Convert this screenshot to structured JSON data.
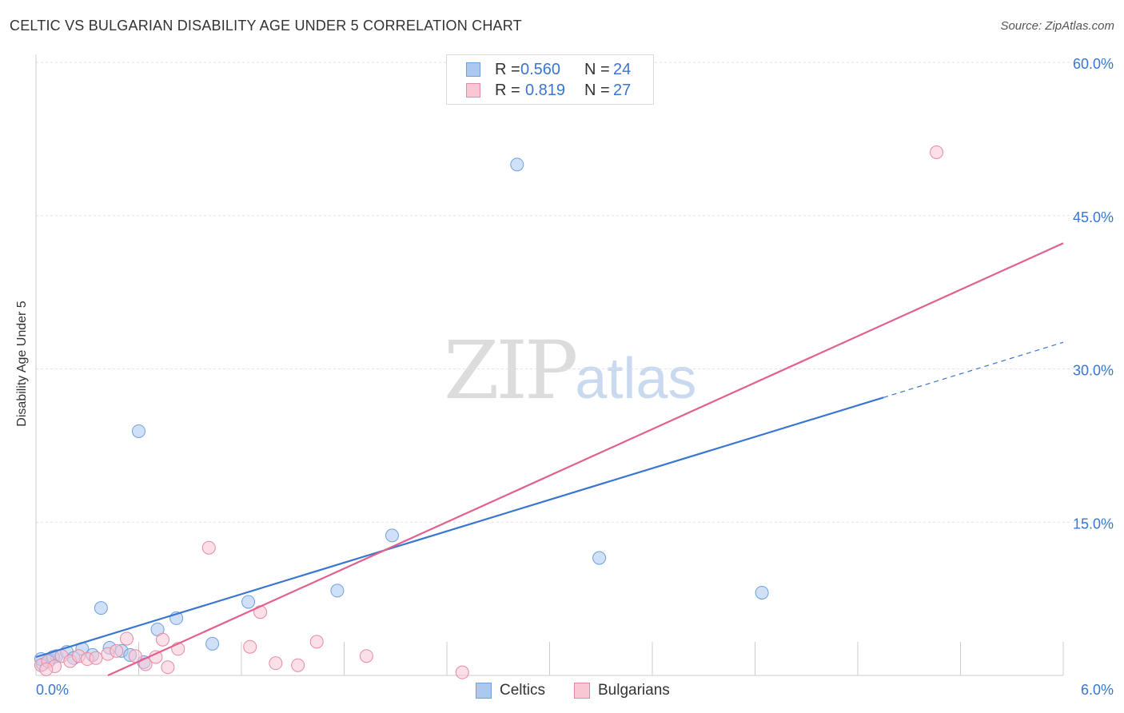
{
  "header": {
    "title": "CELTIC VS BULGARIAN DISABILITY AGE UNDER 5 CORRELATION CHART",
    "source": "Source: ZipAtlas.com"
  },
  "watermark": {
    "zip": "ZIP",
    "atlas": "atlas"
  },
  "legend": {
    "rows": [
      {
        "r_label": "R =",
        "r_value": "0.560",
        "n_label": "N =",
        "n_value": "24",
        "color": "#aac8f0",
        "border": "#6f9fdc"
      },
      {
        "r_label": "R =",
        "r_value": "0.819",
        "n_label": "N =",
        "n_value": "27",
        "color": "#f9c6d4",
        "border": "#e58aa6"
      }
    ],
    "bottom": [
      {
        "label": "Celtics",
        "color": "#aac8f0",
        "border": "#6f9fdc"
      },
      {
        "label": "Bulgarians",
        "color": "#f9c6d4",
        "border": "#e58aa6"
      }
    ]
  },
  "chart_data": {
    "type": "scatter",
    "title": "CELTIC VS BULGARIAN DISABILITY AGE UNDER 5 CORRELATION CHART",
    "xlabel": "",
    "ylabel": "Disability Age Under 5",
    "xlim": [
      0,
      6
    ],
    "ylim": [
      0,
      60
    ],
    "x_tick_labels": [
      "0.0%",
      "6.0%"
    ],
    "y_ticks": [
      15,
      30,
      45,
      60
    ],
    "y_tick_labels": [
      "15.0%",
      "30.0%",
      "45.0%",
      "60.0%"
    ],
    "grid": true,
    "colors": {
      "celtics": "#3a76d0",
      "bulgarians": "#e06090",
      "axis_text": "#3a76d0"
    },
    "series": [
      {
        "name": "Celtics",
        "R": 0.56,
        "N": 24,
        "points": [
          [
            0.04,
            1.1
          ],
          [
            0.08,
            1.5
          ],
          [
            0.12,
            1.9
          ],
          [
            0.18,
            2.3
          ],
          [
            0.22,
            1.7
          ],
          [
            0.27,
            2.6
          ],
          [
            0.33,
            2.0
          ],
          [
            0.38,
            6.6
          ],
          [
            0.43,
            2.7
          ],
          [
            0.5,
            2.4
          ],
          [
            0.55,
            2.0
          ],
          [
            0.6,
            23.9
          ],
          [
            0.63,
            1.3
          ],
          [
            0.71,
            4.5
          ],
          [
            0.82,
            5.6
          ],
          [
            1.03,
            3.1
          ],
          [
            1.24,
            7.2
          ],
          [
            1.76,
            8.3
          ],
          [
            2.08,
            13.7
          ],
          [
            2.81,
            50.0
          ],
          [
            3.29,
            11.5
          ],
          [
            4.24,
            8.1
          ],
          [
            0.03,
            1.6
          ],
          [
            0.1,
            1.8
          ]
        ],
        "trend": {
          "x0": 0.0,
          "y0": 1.8,
          "x1": 4.95,
          "y1": 27.2,
          "dash_x1": 6.0,
          "dash_y1": 32.6
        }
      },
      {
        "name": "Bulgarians",
        "R": 0.819,
        "N": 27,
        "points": [
          [
            0.03,
            1.0
          ],
          [
            0.07,
            1.4
          ],
          [
            0.11,
            0.9
          ],
          [
            0.15,
            1.9
          ],
          [
            0.2,
            1.4
          ],
          [
            0.25,
            1.9
          ],
          [
            0.3,
            1.6
          ],
          [
            0.35,
            1.7
          ],
          [
            0.42,
            2.1
          ],
          [
            0.47,
            2.4
          ],
          [
            0.53,
            3.6
          ],
          [
            0.58,
            1.9
          ],
          [
            0.64,
            1.1
          ],
          [
            0.7,
            1.8
          ],
          [
            0.77,
            0.8
          ],
          [
            0.74,
            3.5
          ],
          [
            0.83,
            2.6
          ],
          [
            1.01,
            12.5
          ],
          [
            1.25,
            2.8
          ],
          [
            1.31,
            6.2
          ],
          [
            1.4,
            1.2
          ],
          [
            1.53,
            1.0
          ],
          [
            1.64,
            3.3
          ],
          [
            1.93,
            1.9
          ],
          [
            2.49,
            0.3
          ],
          [
            5.26,
            51.2
          ],
          [
            0.06,
            0.6
          ]
        ],
        "trend": {
          "x0": 0.42,
          "y0": 0.0,
          "x1": 6.0,
          "y1": 42.3
        }
      }
    ]
  }
}
